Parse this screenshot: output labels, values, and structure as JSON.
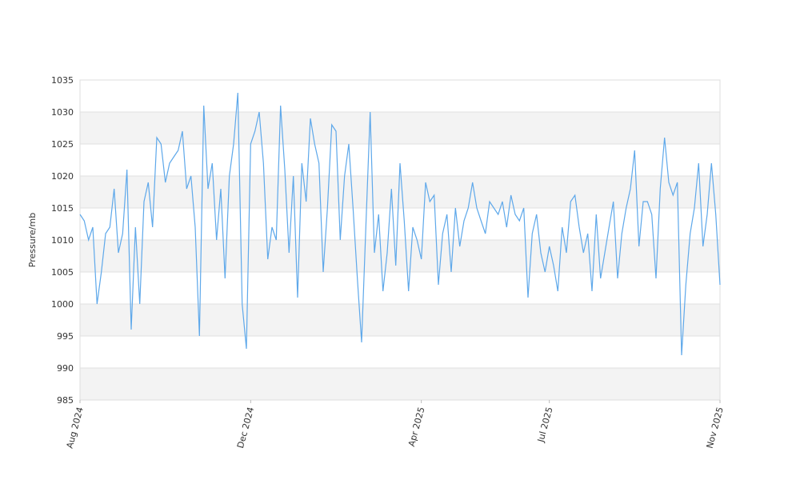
{
  "chart_data": {
    "type": "line",
    "y_label": "Pressure/mb",
    "x": [
      0,
      0.1,
      0.2,
      0.3,
      0.4,
      0.5,
      0.6,
      0.7,
      0.8,
      0.9,
      1,
      1.1,
      1.2,
      1.3,
      1.4,
      1.5,
      1.6,
      1.7,
      1.8,
      1.9,
      2,
      2.1,
      2.2,
      2.3,
      2.4,
      2.5,
      2.6,
      2.7,
      2.8,
      2.9,
      3,
      3.1,
      3.2,
      3.3,
      3.4,
      3.5,
      3.6,
      3.7,
      3.8,
      3.9,
      4,
      4.1,
      4.2,
      4.3,
      4.4,
      4.5,
      4.6,
      4.7,
      4.8,
      4.9,
      5,
      5.1,
      5.2,
      5.3,
      5.4,
      5.5,
      5.6,
      5.7,
      5.8,
      5.9,
      6,
      6.1,
      6.2,
      6.3,
      6.4,
      6.5,
      6.6,
      6.7,
      6.8,
      6.9,
      7,
      7.1,
      7.2,
      7.3,
      7.4,
      7.5,
      7.6,
      7.7,
      7.8,
      7.9,
      8,
      8.1,
      8.2,
      8.3,
      8.4,
      8.5,
      8.6,
      8.7,
      8.8,
      8.9,
      9,
      9.1,
      9.2,
      9.3,
      9.4,
      9.5,
      9.6,
      9.7,
      9.8,
      9.9,
      10,
      10.1,
      10.2,
      10.3,
      10.4,
      10.5,
      10.6,
      10.7,
      10.8,
      10.9,
      11,
      11.1,
      11.2,
      11.3,
      11.4,
      11.5,
      11.6,
      11.7,
      11.8,
      11.9,
      12,
      12.1,
      12.2,
      12.3,
      12.4,
      12.5,
      12.6,
      12.7,
      12.8,
      12.9,
      13,
      13.1,
      13.2,
      13.3,
      13.4,
      13.5,
      13.6,
      13.7,
      13.8,
      13.9,
      14,
      14.1,
      14.2,
      14.3,
      14.4,
      14.5,
      14.6,
      14.7,
      14.8,
      14.9,
      15
    ],
    "series": [
      {
        "name": "Pressure",
        "color": "#5ea8ea",
        "values": [
          1014,
          1013,
          1010,
          1012,
          1000,
          1005,
          1011,
          1012,
          1018,
          1008,
          1011,
          1021,
          996,
          1012,
          1000,
          1016,
          1019,
          1012,
          1026,
          1025,
          1019,
          1022,
          1023,
          1024,
          1027,
          1018,
          1020,
          1012,
          995,
          1031,
          1018,
          1022,
          1010,
          1018,
          1004,
          1020,
          1025,
          1033,
          1000,
          993,
          1025,
          1027,
          1030,
          1022,
          1007,
          1012,
          1010,
          1031,
          1021,
          1008,
          1020,
          1001,
          1022,
          1016,
          1029,
          1025,
          1022,
          1005,
          1015,
          1028,
          1027,
          1010,
          1020,
          1025,
          1015,
          1004,
          994,
          1012,
          1030,
          1008,
          1014,
          1002,
          1008,
          1018,
          1006,
          1022,
          1013,
          1002,
          1012,
          1010,
          1007,
          1019,
          1016,
          1017,
          1003,
          1011,
          1014,
          1005,
          1015,
          1009,
          1013,
          1015,
          1019,
          1015,
          1013,
          1011,
          1016,
          1015,
          1014,
          1016,
          1012,
          1017,
          1014,
          1013,
          1015,
          1001,
          1011,
          1014,
          1008,
          1005,
          1009,
          1006,
          1002,
          1012,
          1008,
          1016,
          1017,
          1012,
          1008,
          1011,
          1002,
          1014,
          1004,
          1008,
          1012,
          1016,
          1004,
          1011,
          1015,
          1018,
          1024,
          1009,
          1016,
          1016,
          1014,
          1004,
          1018,
          1026,
          1019,
          1017,
          1019,
          992,
          1003,
          1011,
          1015,
          1022,
          1009,
          1014,
          1022,
          1014,
          1003
        ]
      }
    ],
    "xlim": [
      0,
      15
    ],
    "xticks": [
      {
        "value": 0,
        "label": "Aug 2024"
      },
      {
        "value": 4,
        "label": "Dec 2024"
      },
      {
        "value": 8,
        "label": "Apr 2025"
      },
      {
        "value": 11,
        "label": "Jul 2025"
      },
      {
        "value": 15,
        "label": "Nov 2025"
      }
    ],
    "ylim": [
      985,
      1035
    ],
    "yticks": [
      985,
      990,
      995,
      1000,
      1005,
      1010,
      1015,
      1020,
      1025,
      1030,
      1035
    ],
    "grid": true
  }
}
